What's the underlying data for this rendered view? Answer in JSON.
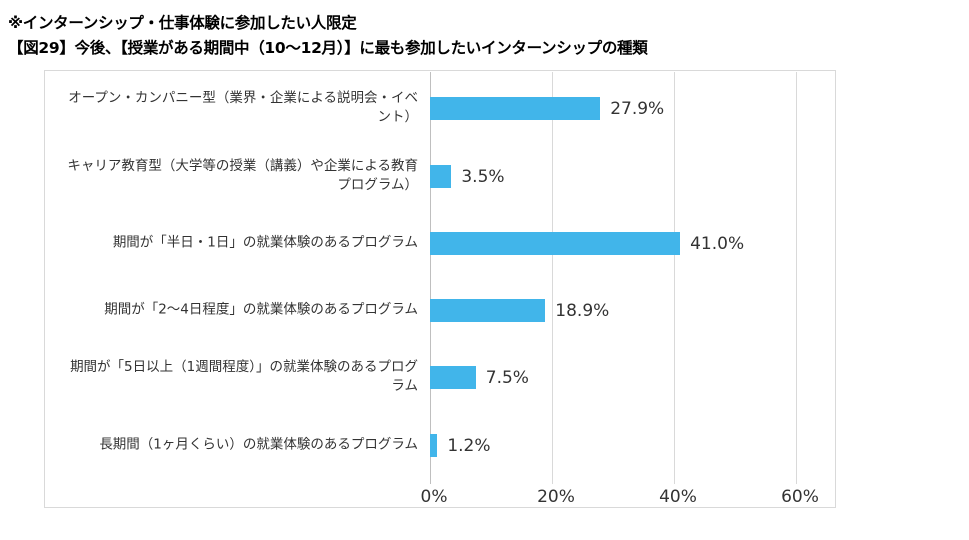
{
  "header": {
    "note": "※インターンシップ・仕事体験に参加したい人限定",
    "title": "【図29】今後、【授業がある期間中（10～12月）】に最も参加したいインターンシップの種類"
  },
  "chart_data": {
    "type": "bar",
    "orientation": "horizontal",
    "title": "【図29】今後、【授業がある期間中（10～12月）】に最も参加したいインターンシップの種類",
    "categories": [
      "オープン・カンパニー型（業界・企業による説明会・イベント）",
      "キャリア教育型（大学等の授業（講義）や企業による教育プログラム）",
      "期間が「半日・1日」の就業体験のあるプログラム",
      "期間が「2～4日程度」の就業体験のあるプログラム",
      "期間が「5日以上（1週間程度）」の就業体験のあるプログラム",
      "長期間（1ヶ月くらい）の就業体験のあるプログラム"
    ],
    "values": [
      27.9,
      3.5,
      41.0,
      18.9,
      7.5,
      1.2
    ],
    "value_labels": [
      "27.9%",
      "3.5%",
      "41.0%",
      "18.9%",
      "7.5%",
      "1.2%"
    ],
    "xlim": [
      0,
      60
    ],
    "xticks": [
      0,
      20,
      40,
      60
    ],
    "xtick_labels": [
      "0%",
      "20%",
      "40%",
      "60%"
    ],
    "grid": true,
    "bar_color": "#41b5ea"
  }
}
